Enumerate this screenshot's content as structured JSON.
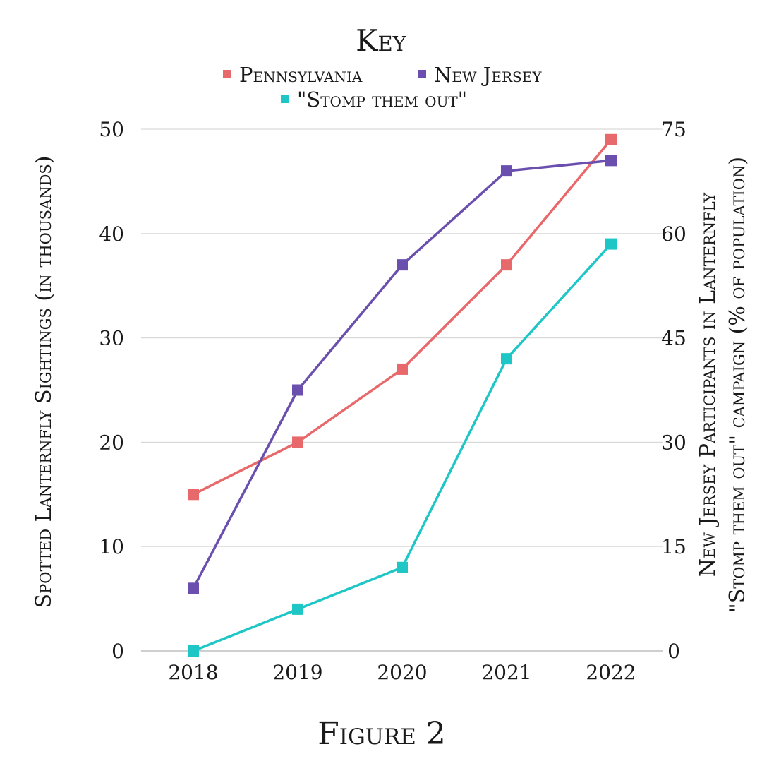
{
  "legend": {
    "title": "Key",
    "entries": [
      "Pennsylvania",
      "New Jersey",
      "\"Stomp them out\""
    ]
  },
  "figure_caption": "Figure 2",
  "chart_data": {
    "type": "line",
    "categories": [
      "2018",
      "2019",
      "2020",
      "2021",
      "2022"
    ],
    "series": [
      {
        "name": "Pennsylvania",
        "axis": "left",
        "color": "#E8696B",
        "marker": "square",
        "values": [
          15,
          20,
          27,
          37,
          49
        ]
      },
      {
        "name": "New Jersey",
        "axis": "left",
        "color": "#6A4FAF",
        "marker": "square",
        "values": [
          6,
          25,
          37,
          46,
          47
        ]
      },
      {
        "name": "\"Stomp them out\"",
        "axis": "right",
        "color": "#1EC6C6",
        "marker": "square",
        "values": [
          0,
          6,
          12,
          42,
          58.5
        ]
      }
    ],
    "ylabel": "Spotted Lanternfly Sightings (in thousands)",
    "ylim": [
      0,
      50
    ],
    "yticks": [
      "0",
      "10",
      "20",
      "30",
      "40",
      "50"
    ],
    "y2label_lines": [
      "New Jersey Participants in Lanternfly",
      "\"Stomp them out\" campaign (% of population)"
    ],
    "y2lim": [
      0,
      75
    ],
    "y2ticks": [
      "0",
      "15",
      "30",
      "45",
      "60",
      "75"
    ],
    "grid": true,
    "legend_position": "top"
  }
}
